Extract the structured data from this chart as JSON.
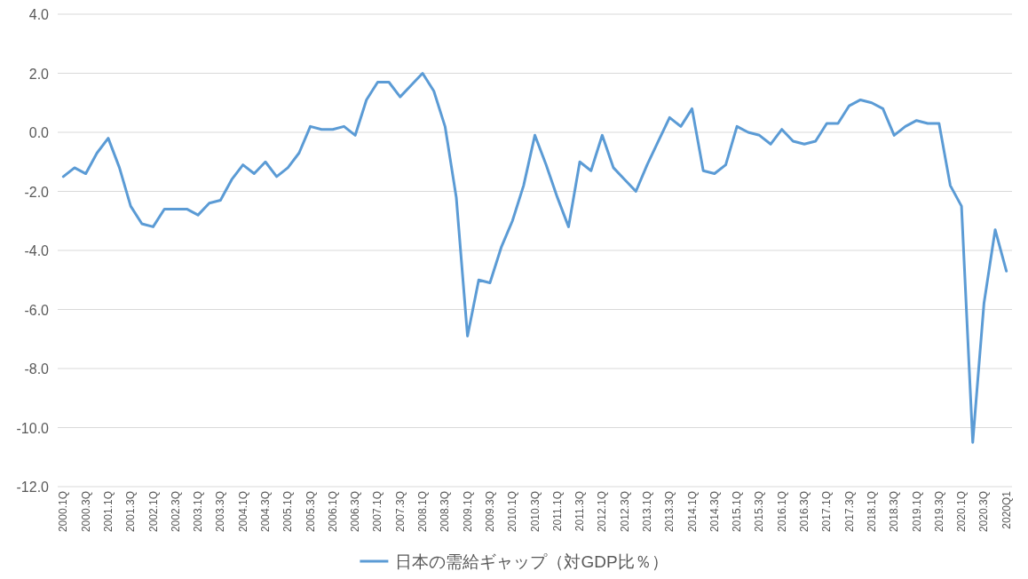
{
  "chart_data": {
    "type": "line",
    "categories": [
      "2000.1Q",
      null,
      "2000.3Q",
      null,
      "2001.1Q",
      null,
      "2001.3Q",
      null,
      "2002.1Q",
      null,
      "2002.3Q",
      null,
      "2003.1Q",
      null,
      "2003.3Q",
      null,
      "2004.1Q",
      null,
      "2004.3Q",
      null,
      "2005.1Q",
      null,
      "2005.3Q",
      null,
      "2006.1Q",
      null,
      "2006.3Q",
      null,
      "2007.1Q",
      null,
      "2007.3Q",
      null,
      "2008.1Q",
      null,
      "2008.3Q",
      null,
      "2009.1Q",
      null,
      "2009.3Q",
      null,
      "2010.1Q",
      null,
      "2010.3Q",
      null,
      "2011.1Q",
      null,
      "2011.3Q",
      null,
      "2012.1Q",
      null,
      "2012.3Q",
      null,
      "2013.1Q",
      null,
      "2013.3Q",
      null,
      "2014.1Q",
      null,
      "2014.3Q",
      null,
      "2015.1Q",
      null,
      "2015.3Q",
      null,
      "2016.1Q",
      null,
      "2016.3Q",
      null,
      "2017.1Q",
      null,
      "2017.3Q",
      null,
      "2018.1Q",
      null,
      "2018.3Q",
      null,
      "2019.1Q",
      null,
      "2019.3Q",
      null,
      "2020.1Q",
      null,
      "2020.3Q",
      null,
      "2020Q1"
    ],
    "series": [
      {
        "name": "日本の需給ギャップ（対GDP比％）",
        "color": "#5b9bd5",
        "values": [
          -1.5,
          -1.2,
          -1.4,
          -0.7,
          -0.2,
          -1.2,
          -2.5,
          -3.1,
          -3.2,
          -2.6,
          -2.6,
          -2.6,
          -2.8,
          -2.4,
          -2.3,
          -1.6,
          -1.1,
          -1.4,
          -1.0,
          -1.5,
          -1.2,
          -0.7,
          0.2,
          0.1,
          0.1,
          0.2,
          -0.1,
          1.1,
          1.7,
          1.7,
          1.2,
          1.6,
          2.0,
          1.4,
          0.2,
          -2.2,
          -6.9,
          -5.0,
          -5.1,
          -3.9,
          -3.0,
          -1.8,
          -0.1,
          -1.1,
          -2.2,
          -3.2,
          -1.0,
          -1.3,
          -0.1,
          -1.2,
          -1.6,
          -2.0,
          -1.1,
          -0.3,
          0.5,
          0.2,
          0.8,
          -1.3,
          -1.4,
          -1.1,
          0.2,
          0.0,
          -0.1,
          -0.4,
          0.1,
          -0.3,
          -0.4,
          -0.3,
          0.3,
          0.3,
          0.9,
          1.1,
          1.0,
          0.8,
          -0.1,
          0.2,
          0.4,
          0.3,
          0.3,
          -1.8,
          -2.5,
          -10.5,
          -5.8,
          -3.3,
          -4.7
        ]
      }
    ],
    "ylim": [
      -12,
      4
    ],
    "yticks": [
      {
        "value": -12,
        "label": "-12.0"
      },
      {
        "value": -10,
        "label": "-10.0"
      },
      {
        "value": -8,
        "label": "-8.0"
      },
      {
        "value": -6,
        "label": "-6.0"
      },
      {
        "value": -4,
        "label": "-4.0"
      },
      {
        "value": -2,
        "label": "-2.0"
      },
      {
        "value": 0,
        "label": "0.0"
      },
      {
        "value": 2,
        "label": "2.0"
      },
      {
        "value": 4,
        "label": "4.0"
      }
    ],
    "grid": "y",
    "legend": "bottom",
    "marker": "none",
    "line_style": "solid"
  }
}
